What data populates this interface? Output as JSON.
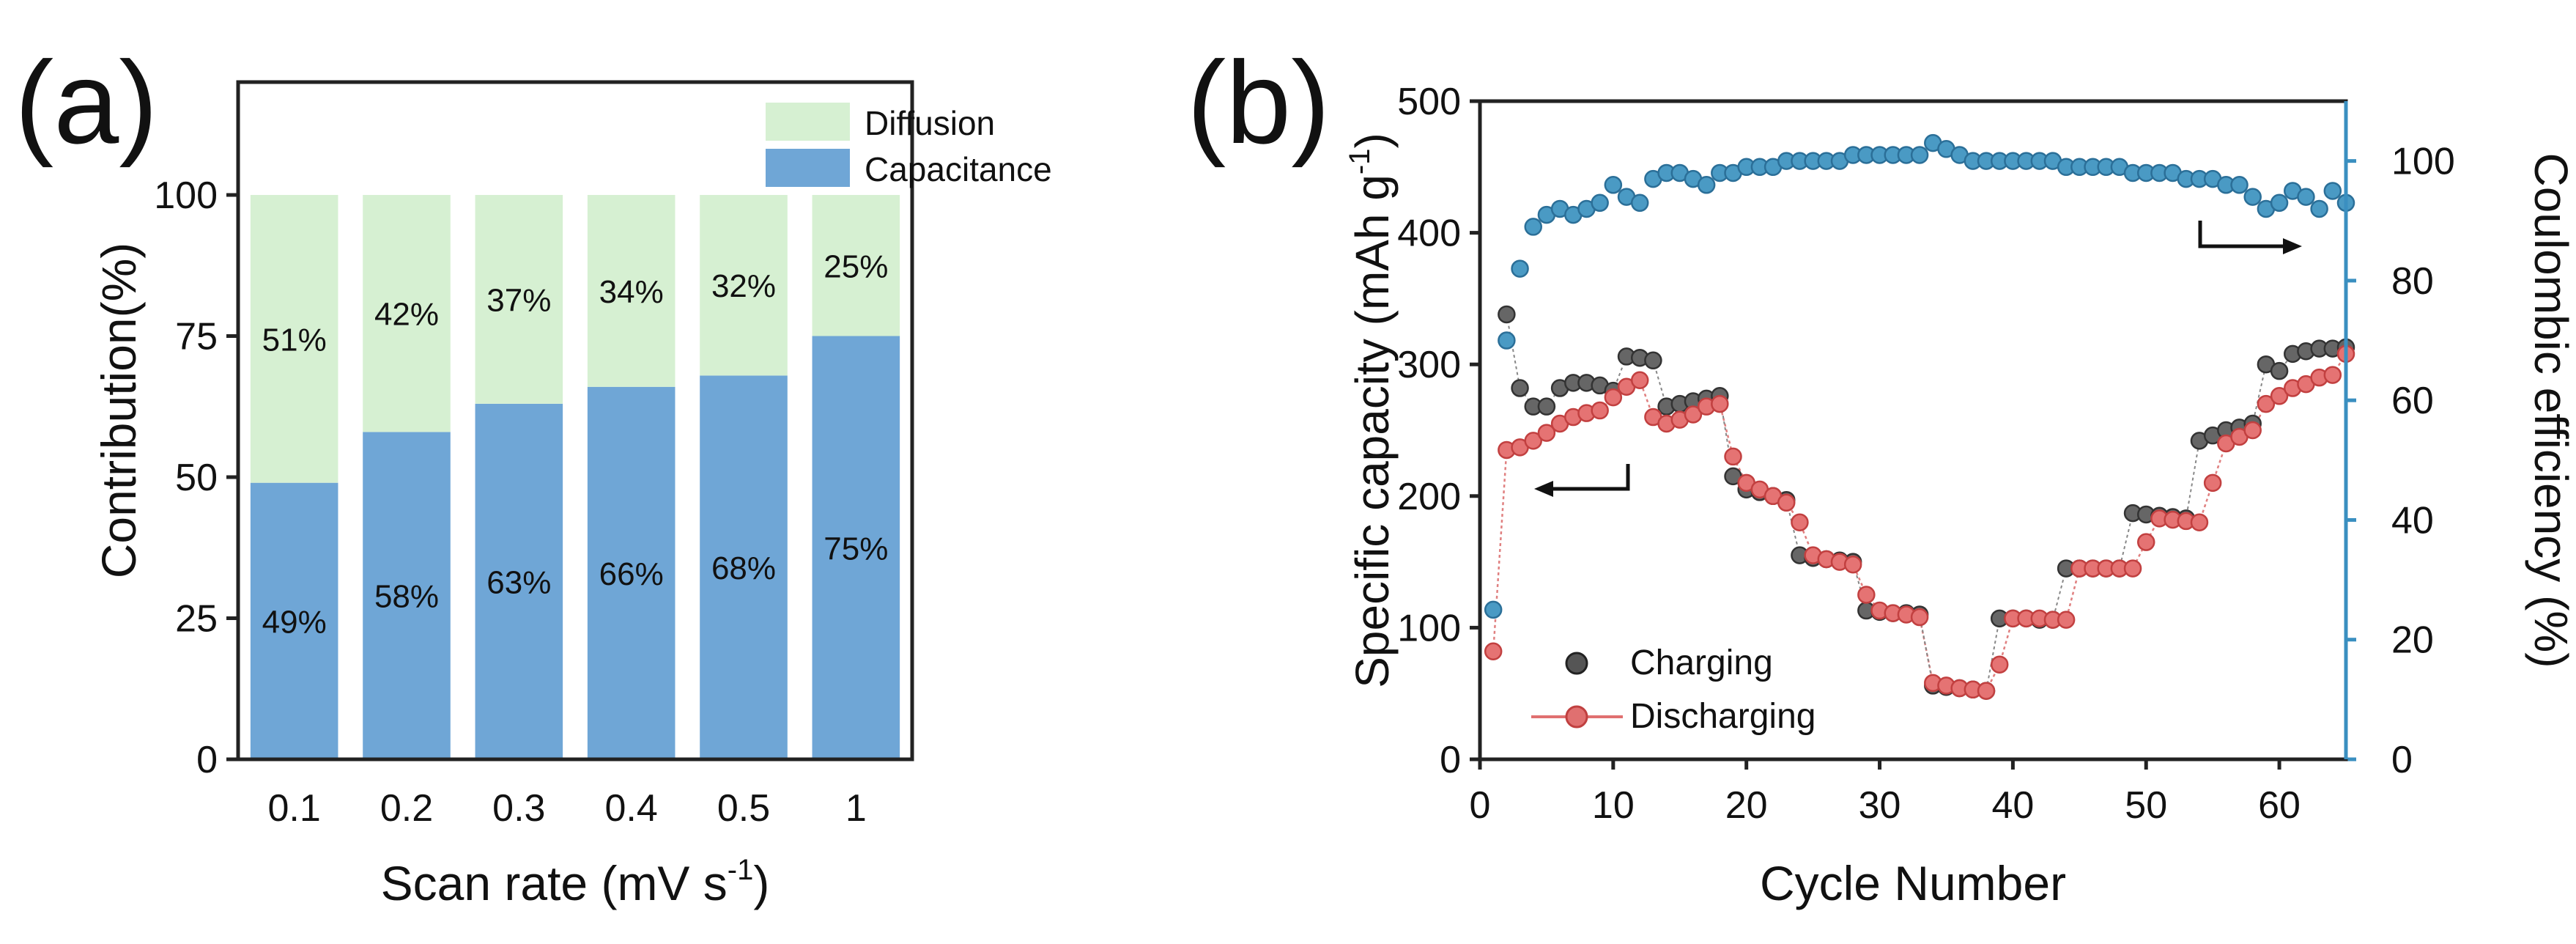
{
  "chart_data": [
    {
      "type": "bar",
      "panel_label": "(a)",
      "stacked": true,
      "categories": [
        "0.1",
        "0.2",
        "0.3",
        "0.4",
        "0.5",
        "1"
      ],
      "series": [
        {
          "name": "Capacitance",
          "color": "#6fa6d6",
          "values": [
            49,
            58,
            63,
            66,
            68,
            75
          ],
          "labels": [
            "49%",
            "58%",
            "63%",
            "66%",
            "68%",
            "75%"
          ]
        },
        {
          "name": "Diffusion",
          "color": "#d6f0d2",
          "values": [
            51,
            42,
            37,
            34,
            32,
            25
          ],
          "labels": [
            "51%",
            "42%",
            "37%",
            "34%",
            "32%",
            "25%"
          ]
        }
      ],
      "legend": [
        "Diffusion",
        "Capacitance"
      ],
      "xlabel": "Scan rate (mV s",
      "xlabel_sup": "-1",
      "xlabel_end": ")",
      "ylabel": "Contribution(%)",
      "ylim": [
        0,
        120
      ],
      "yticks": [
        "0",
        "25",
        "50",
        "75",
        "100"
      ]
    },
    {
      "type": "scatter",
      "panel_label": "(b)",
      "xlabel": "Cycle Number",
      "ylabel": "Specific capacity (mAh g",
      "ylabel_sup": "-1",
      "ylabel_end": ")",
      "y2label": "Coulombic efficiency (%)",
      "xlim": [
        0,
        65
      ],
      "ylim": [
        0,
        500
      ],
      "y2lim": [
        0,
        110
      ],
      "xticks": [
        "0",
        "10",
        "20",
        "30",
        "40",
        "50",
        "60"
      ],
      "yticks": [
        "0",
        "100",
        "200",
        "300",
        "400",
        "500"
      ],
      "y2ticks": [
        "0",
        "20",
        "40",
        "60",
        "80",
        "100"
      ],
      "series": [
        {
          "name": "Charging",
          "axis": "left",
          "color": "#555555",
          "x": [
            2,
            3,
            4,
            5,
            6,
            7,
            8,
            9,
            10,
            11,
            12,
            13,
            14,
            15,
            16,
            17,
            18,
            19,
            20,
            21,
            22,
            23,
            24,
            25,
            26,
            27,
            28,
            29,
            30,
            31,
            32,
            33,
            34,
            35,
            36,
            37,
            38,
            39,
            40,
            41,
            42,
            43,
            44,
            45,
            46,
            47,
            48,
            49,
            50,
            51,
            52,
            53,
            54,
            55,
            56,
            57,
            58,
            59,
            60,
            61,
            62,
            63,
            64,
            65
          ],
          "y": [
            338,
            282,
            268,
            268,
            282,
            286,
            286,
            284,
            280,
            306,
            305,
            303,
            268,
            270,
            272,
            274,
            276,
            215,
            205,
            203,
            200,
            197,
            155,
            153,
            152,
            151,
            150,
            113,
            112,
            111,
            111,
            110,
            56,
            55,
            54,
            53,
            52,
            107,
            107,
            107,
            106,
            106,
            145,
            145,
            145,
            145,
            145,
            187,
            186,
            185,
            184,
            183,
            242,
            246,
            250,
            252,
            255,
            300,
            295,
            308,
            310,
            312,
            312,
            313
          ]
        },
        {
          "name": "Discharging",
          "axis": "left",
          "color": "#e07070",
          "x": [
            1,
            2,
            3,
            4,
            5,
            6,
            7,
            8,
            9,
            10,
            11,
            12,
            13,
            14,
            15,
            16,
            17,
            18,
            19,
            20,
            21,
            22,
            23,
            24,
            25,
            26,
            27,
            28,
            29,
            30,
            31,
            32,
            33,
            34,
            35,
            36,
            37,
            38,
            39,
            40,
            41,
            42,
            43,
            44,
            45,
            46,
            47,
            48,
            49,
            50,
            51,
            52,
            53,
            54,
            55,
            56,
            57,
            58,
            59,
            60,
            61,
            62,
            63,
            64,
            65
          ],
          "y": [
            82,
            235,
            237,
            242,
            248,
            255,
            260,
            263,
            265,
            275,
            283,
            288,
            260,
            255,
            258,
            262,
            268,
            270,
            230,
            210,
            205,
            200,
            195,
            180,
            155,
            152,
            150,
            148,
            125,
            113,
            111,
            110,
            108,
            58,
            56,
            54,
            53,
            52,
            72,
            107,
            107,
            107,
            106,
            106,
            145,
            145,
            145,
            145,
            145,
            165,
            183,
            182,
            181,
            180,
            210,
            240,
            245,
            250,
            270,
            276,
            282,
            285,
            290,
            292,
            308
          ]
        },
        {
          "name": "Coulombic efficiency",
          "axis": "right",
          "color": "#4a9ac4",
          "x": [
            1,
            2,
            3,
            4,
            5,
            6,
            7,
            8,
            9,
            10,
            11,
            12,
            13,
            14,
            15,
            16,
            17,
            18,
            19,
            20,
            21,
            22,
            23,
            24,
            25,
            26,
            27,
            28,
            29,
            30,
            31,
            32,
            33,
            34,
            35,
            36,
            37,
            38,
            39,
            40,
            41,
            42,
            43,
            44,
            45,
            46,
            47,
            48,
            49,
            50,
            51,
            52,
            53,
            54,
            55,
            56,
            57,
            58,
            59,
            60,
            61,
            62,
            63,
            64,
            65
          ],
          "y": [
            25,
            70,
            82,
            89,
            91,
            92,
            91,
            92,
            93,
            96,
            94,
            93,
            97,
            98,
            98,
            97,
            96,
            98,
            98,
            99,
            99,
            99,
            100,
            100,
            100,
            100,
            100,
            101,
            101,
            101,
            101,
            101,
            101,
            103,
            102,
            101,
            100,
            100,
            100,
            100,
            100,
            100,
            100,
            99,
            99,
            99,
            99,
            99,
            98,
            98,
            98,
            98,
            97,
            97,
            97,
            96,
            96,
            94,
            92,
            93,
            95,
            94,
            92,
            95,
            93
          ]
        }
      ],
      "legend": [
        "Charging",
        "Discharging"
      ]
    }
  ]
}
